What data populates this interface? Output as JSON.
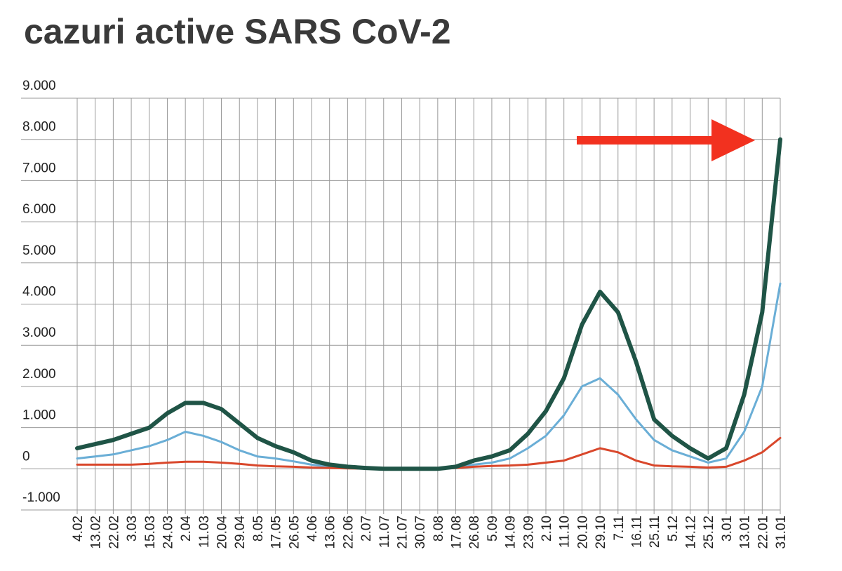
{
  "chart_data": {
    "type": "line",
    "title": "cazuri active SARS CoV-2",
    "categories": [
      "4.02",
      "13.02",
      "22.02",
      "3.03",
      "15.03",
      "24.03",
      "2.04",
      "11.03",
      "20.04",
      "29.04",
      "8.05",
      "17.05",
      "26.05",
      "4.06",
      "13.06",
      "22.06",
      "2.07",
      "11.07",
      "21.07",
      "30.07",
      "8.08",
      "17.08",
      "26.08",
      "5.09",
      "14.09",
      "23.09",
      "2.10",
      "11.10",
      "20.10",
      "29.10",
      "7.11",
      "16.11",
      "25.11",
      "5.12",
      "14.12",
      "25.12",
      "3.01",
      "13.01",
      "22.01",
      "31.01"
    ],
    "series": [
      {
        "color": "#6aaed6",
        "width": 3,
        "values": [
          250,
          300,
          350,
          450,
          550,
          700,
          900,
          800,
          650,
          450,
          300,
          250,
          180,
          100,
          50,
          30,
          10,
          0,
          0,
          0,
          0,
          30,
          100,
          150,
          250,
          500,
          800,
          1300,
          2000,
          2200,
          1800,
          1200,
          700,
          450,
          300,
          150,
          250,
          900,
          2000,
          4500
        ]
      },
      {
        "color": "#d9472b",
        "width": 3,
        "values": [
          100,
          100,
          100,
          100,
          120,
          150,
          170,
          170,
          150,
          120,
          80,
          60,
          50,
          30,
          20,
          10,
          5,
          0,
          0,
          0,
          0,
          20,
          50,
          70,
          80,
          100,
          150,
          200,
          350,
          500,
          400,
          200,
          80,
          60,
          50,
          30,
          50,
          200,
          400,
          750
        ]
      },
      {
        "color": "#1f5446",
        "width": 6,
        "values": [
          500,
          600,
          700,
          850,
          1000,
          1350,
          1600,
          1600,
          1450,
          1100,
          750,
          550,
          400,
          200,
          100,
          50,
          20,
          0,
          0,
          0,
          0,
          50,
          200,
          300,
          450,
          850,
          1400,
          2200,
          3500,
          4300,
          3800,
          2600,
          1200,
          800,
          500,
          250,
          500,
          1800,
          3800,
          8000
        ]
      }
    ],
    "ylim": [
      -1000,
      9000
    ],
    "yticks": [
      {
        "value": -1000,
        "label": "-1.000"
      },
      0,
      {
        "value": 1000,
        "label": "1.000"
      },
      {
        "value": 2000,
        "label": "2.000"
      },
      {
        "value": 3000,
        "label": "3.000"
      },
      {
        "value": 4000,
        "label": "4.000"
      },
      {
        "value": 5000,
        "label": "5.000"
      },
      {
        "value": 6000,
        "label": "6.000"
      },
      {
        "value": 7000,
        "label": "7.000"
      },
      {
        "value": 8000,
        "label": "8.000"
      },
      {
        "value": 9000,
        "label": "9.000"
      }
    ],
    "grid": true
  }
}
